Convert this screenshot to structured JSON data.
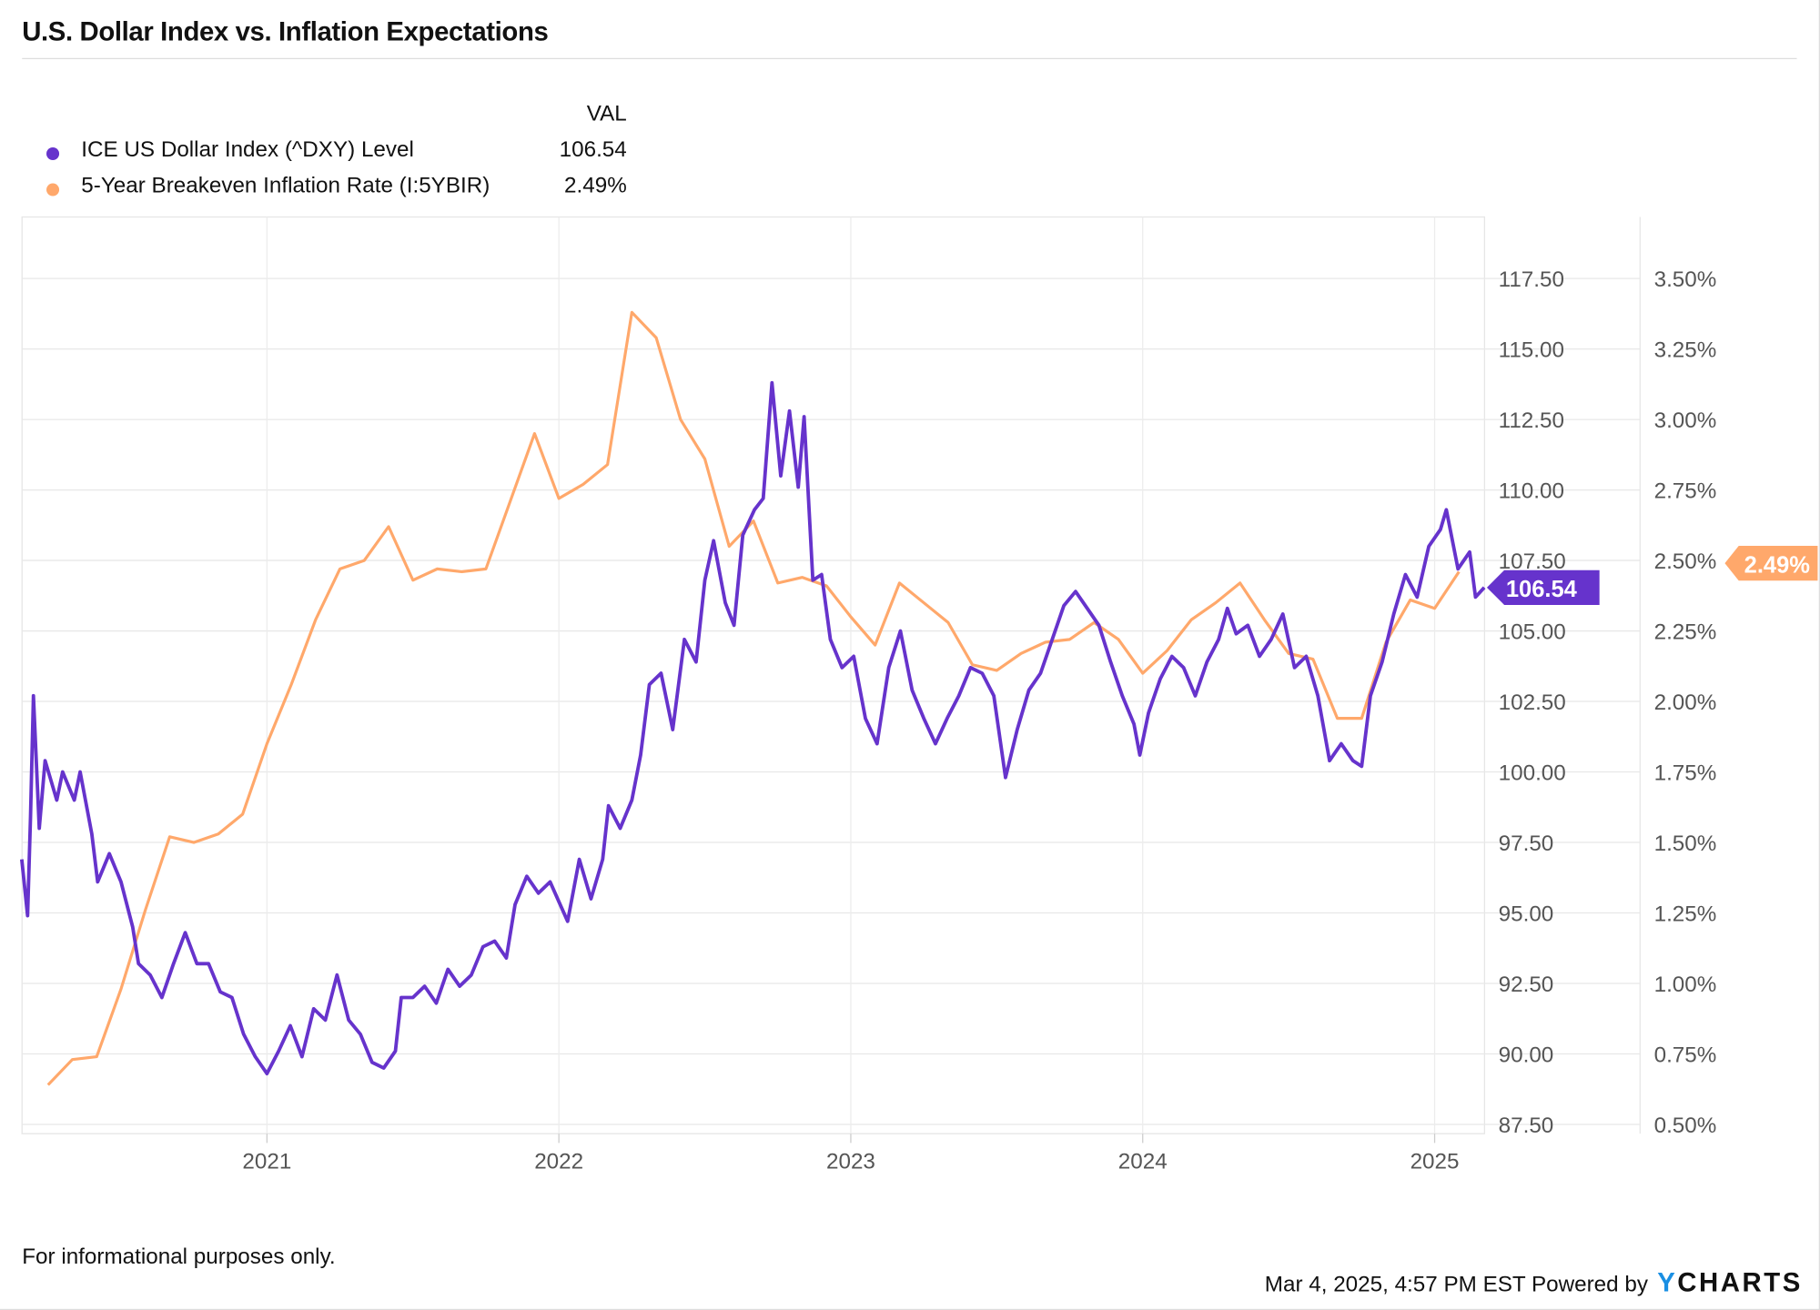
{
  "title": "U.S. Dollar Index vs. Inflation Expectations",
  "legend": {
    "header": "VAL",
    "items": [
      {
        "label": "ICE US Dollar Index (^DXY) Level",
        "value": "106.54",
        "color": "#6633cc"
      },
      {
        "label": "5-Year Breakeven Inflation Rate (I:5YBIR)",
        "value": "2.49%",
        "color": "#ffa86b"
      }
    ]
  },
  "footer": {
    "disclaimer": "For informational purposes only.",
    "timestamp": "Mar 4, 2025, 4:57 PM EST Powered by",
    "logo": "YCHARTS"
  },
  "chart_data": {
    "type": "line",
    "title": "U.S. Dollar Index vs. Inflation Expectations",
    "xlabel": "",
    "x_ticks": [
      "2021",
      "2022",
      "2023",
      "2024",
      "2025"
    ],
    "xlim": [
      2020.16,
      2025.17
    ],
    "grid": true,
    "legend_placement": "top-left",
    "y_left": {
      "ticks": [
        "87.50",
        "90.00",
        "92.50",
        "95.00",
        "97.50",
        "100.00",
        "102.50",
        "105.00",
        "107.50",
        "110.00",
        "112.50",
        "115.00",
        "117.50"
      ],
      "ylim": [
        87.5,
        117.5
      ]
    },
    "y_right": {
      "ticks": [
        "0.50%",
        "0.75%",
        "1.00%",
        "1.25%",
        "1.50%",
        "1.75%",
        "2.00%",
        "2.25%",
        "2.50%",
        "2.75%",
        "3.00%",
        "3.25%",
        "3.50%"
      ],
      "ylim": [
        0.5,
        3.5
      ]
    },
    "series": [
      {
        "name": "ICE US Dollar Index (^DXY) Level",
        "axis": "left",
        "color": "#6633cc",
        "last_label": "106.54",
        "x": [
          2020.16,
          2020.18,
          2020.19,
          2020.2,
          2020.22,
          2020.24,
          2020.28,
          2020.3,
          2020.34,
          2020.36,
          2020.4,
          2020.42,
          2020.46,
          2020.5,
          2020.54,
          2020.56,
          2020.6,
          2020.64,
          2020.68,
          2020.72,
          2020.76,
          2020.8,
          2020.84,
          2020.88,
          2020.92,
          2020.96,
          2021.0,
          2021.04,
          2021.08,
          2021.12,
          2021.16,
          2021.2,
          2021.24,
          2021.28,
          2021.32,
          2021.36,
          2021.4,
          2021.44,
          2021.46,
          2021.5,
          2021.54,
          2021.58,
          2021.62,
          2021.66,
          2021.7,
          2021.74,
          2021.78,
          2021.82,
          2021.85,
          2021.89,
          2021.93,
          2021.97,
          2022.03,
          2022.07,
          2022.11,
          2022.15,
          2022.17,
          2022.21,
          2022.25,
          2022.28,
          2022.31,
          2022.35,
          2022.39,
          2022.43,
          2022.47,
          2022.5,
          2022.53,
          2022.57,
          2022.6,
          2022.63,
          2022.67,
          2022.7,
          2022.73,
          2022.76,
          2022.79,
          2022.82,
          2022.84,
          2022.87,
          2022.9,
          2022.93,
          2022.97,
          2023.01,
          2023.05,
          2023.09,
          2023.13,
          2023.17,
          2023.21,
          2023.25,
          2023.29,
          2023.33,
          2023.37,
          2023.41,
          2023.45,
          2023.49,
          2023.53,
          2023.57,
          2023.61,
          2023.65,
          2023.69,
          2023.73,
          2023.77,
          2023.81,
          2023.85,
          2023.89,
          2023.93,
          2023.97,
          2023.99,
          2024.02,
          2024.06,
          2024.1,
          2024.14,
          2024.18,
          2024.22,
          2024.26,
          2024.29,
          2024.32,
          2024.36,
          2024.4,
          2024.44,
          2024.48,
          2024.52,
          2024.56,
          2024.6,
          2024.64,
          2024.68,
          2024.72,
          2024.75,
          2024.78,
          2024.82,
          2024.86,
          2024.9,
          2024.94,
          2024.98,
          2025.02,
          2025.04,
          2025.08,
          2025.12,
          2025.14,
          2025.17
        ],
        "y": [
          96.9,
          94.9,
          98.4,
          102.7,
          98.0,
          100.4,
          99.0,
          100.0,
          99.0,
          100.0,
          97.8,
          96.1,
          97.1,
          96.1,
          94.5,
          93.2,
          92.8,
          92.0,
          93.2,
          94.3,
          93.2,
          93.2,
          92.2,
          92.0,
          90.7,
          89.9,
          89.3,
          90.1,
          91.0,
          89.9,
          91.6,
          91.2,
          92.8,
          91.2,
          90.7,
          89.7,
          89.5,
          90.1,
          92.0,
          92.0,
          92.4,
          91.8,
          93.0,
          92.4,
          92.8,
          93.8,
          94.0,
          93.4,
          95.3,
          96.3,
          95.7,
          96.1,
          94.7,
          96.9,
          95.5,
          96.9,
          98.8,
          98.0,
          99.0,
          100.6,
          103.1,
          103.5,
          101.5,
          104.7,
          103.9,
          106.8,
          108.2,
          106.0,
          105.2,
          108.4,
          109.3,
          109.7,
          113.8,
          110.5,
          112.8,
          110.1,
          112.6,
          106.8,
          107.0,
          104.7,
          103.7,
          104.1,
          101.9,
          101.0,
          103.7,
          105.0,
          102.9,
          101.9,
          101.0,
          101.9,
          102.7,
          103.7,
          103.5,
          102.7,
          99.8,
          101.5,
          102.9,
          103.5,
          104.7,
          105.9,
          106.4,
          105.8,
          105.2,
          103.9,
          102.7,
          101.7,
          100.6,
          102.1,
          103.3,
          104.1,
          103.7,
          102.7,
          103.9,
          104.7,
          105.8,
          104.9,
          105.2,
          104.1,
          104.7,
          105.6,
          103.7,
          104.1,
          102.7,
          100.4,
          101.0,
          100.4,
          100.2,
          102.7,
          103.9,
          105.6,
          107.0,
          106.2,
          108.0,
          108.6,
          109.3,
          107.2,
          107.8,
          106.2,
          106.54
        ]
      },
      {
        "name": "5-Year Breakeven Inflation Rate (I:5YBIR)",
        "axis": "right",
        "color": "#ffa86b",
        "last_label": "2.49%",
        "x": [
          "2020-04",
          "2020-05",
          "2020-06",
          "2020-07",
          "2020-08",
          "2020-09",
          "2020-10",
          "2020-11",
          "2020-12",
          "2021-01",
          "2021-02",
          "2021-03",
          "2021-04",
          "2021-05",
          "2021-06",
          "2021-07",
          "2021-08",
          "2021-09",
          "2021-10",
          "2021-11",
          "2021-12",
          "2022-01",
          "2022-02",
          "2022-03",
          "2022-04",
          "2022-05",
          "2022-06",
          "2022-07",
          "2022-08",
          "2022-09",
          "2022-10",
          "2022-11",
          "2022-12",
          "2023-01",
          "2023-02",
          "2023-03",
          "2023-04",
          "2023-05",
          "2023-06",
          "2023-07",
          "2023-08",
          "2023-09",
          "2023-10",
          "2023-11",
          "2023-12",
          "2024-01",
          "2024-02",
          "2024-03",
          "2024-04",
          "2024-05",
          "2024-06",
          "2024-07",
          "2024-08",
          "2024-09",
          "2024-10",
          "2024-11",
          "2024-12",
          "2025-01",
          "2025-02"
        ],
        "y": [
          0.64,
          0.73,
          0.74,
          0.98,
          1.26,
          1.52,
          1.5,
          1.53,
          1.6,
          1.85,
          2.06,
          2.29,
          2.47,
          2.5,
          2.62,
          2.43,
          2.47,
          2.46,
          2.47,
          2.71,
          2.95,
          2.72,
          2.77,
          2.84,
          3.38,
          3.29,
          3.0,
          2.86,
          2.55,
          2.64,
          2.42,
          2.44,
          2.41,
          2.3,
          2.2,
          2.42,
          2.35,
          2.28,
          2.13,
          2.11,
          2.17,
          2.21,
          2.22,
          2.28,
          2.22,
          2.1,
          2.18,
          2.29,
          2.35,
          2.42,
          2.29,
          2.17,
          2.15,
          1.94,
          1.94,
          2.21,
          2.36,
          2.33,
          2.46
        ]
      }
    ]
  }
}
